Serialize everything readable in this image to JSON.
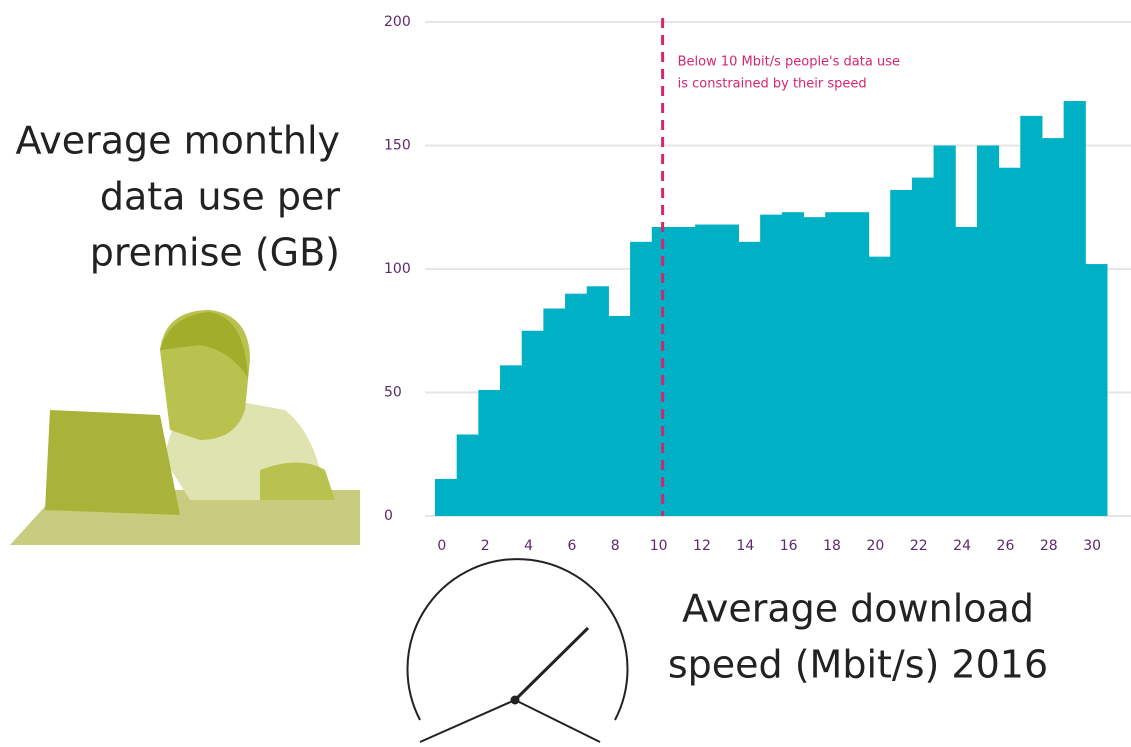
{
  "chart_data": {
    "type": "bar",
    "y_label_lines": [
      "Average monthly",
      "data use per",
      "premise (GB)"
    ],
    "x_label_lines": [
      "Average download",
      "speed (Mbit/s) 2016"
    ],
    "annotation": {
      "x": 10,
      "lines": [
        "Below 10 Mbit/s people's data use",
        "is constrained by their speed"
      ],
      "color": "#d6246e"
    },
    "x": [
      0,
      1,
      2,
      3,
      4,
      5,
      6,
      7,
      8,
      9,
      10,
      11,
      12,
      13,
      14,
      15,
      16,
      17,
      18,
      19,
      20,
      21,
      22,
      23,
      24,
      25,
      26,
      27,
      28,
      29,
      30
    ],
    "values": [
      15,
      33,
      51,
      61,
      75,
      84,
      90,
      93,
      81,
      111,
      117,
      117,
      118,
      118,
      111,
      122,
      123,
      121,
      123,
      123,
      105,
      132,
      137,
      150,
      117,
      150,
      141,
      162,
      153,
      168,
      102
    ],
    "color": "#00b0c4",
    "xlim": [
      -0.5,
      30.5
    ],
    "xticks": [
      0,
      2,
      4,
      6,
      8,
      10,
      12,
      14,
      16,
      18,
      20,
      22,
      24,
      26,
      28,
      30
    ],
    "ylim": [
      0,
      200
    ],
    "yticks": [
      0,
      50,
      100,
      150,
      200
    ],
    "grid": true
  }
}
